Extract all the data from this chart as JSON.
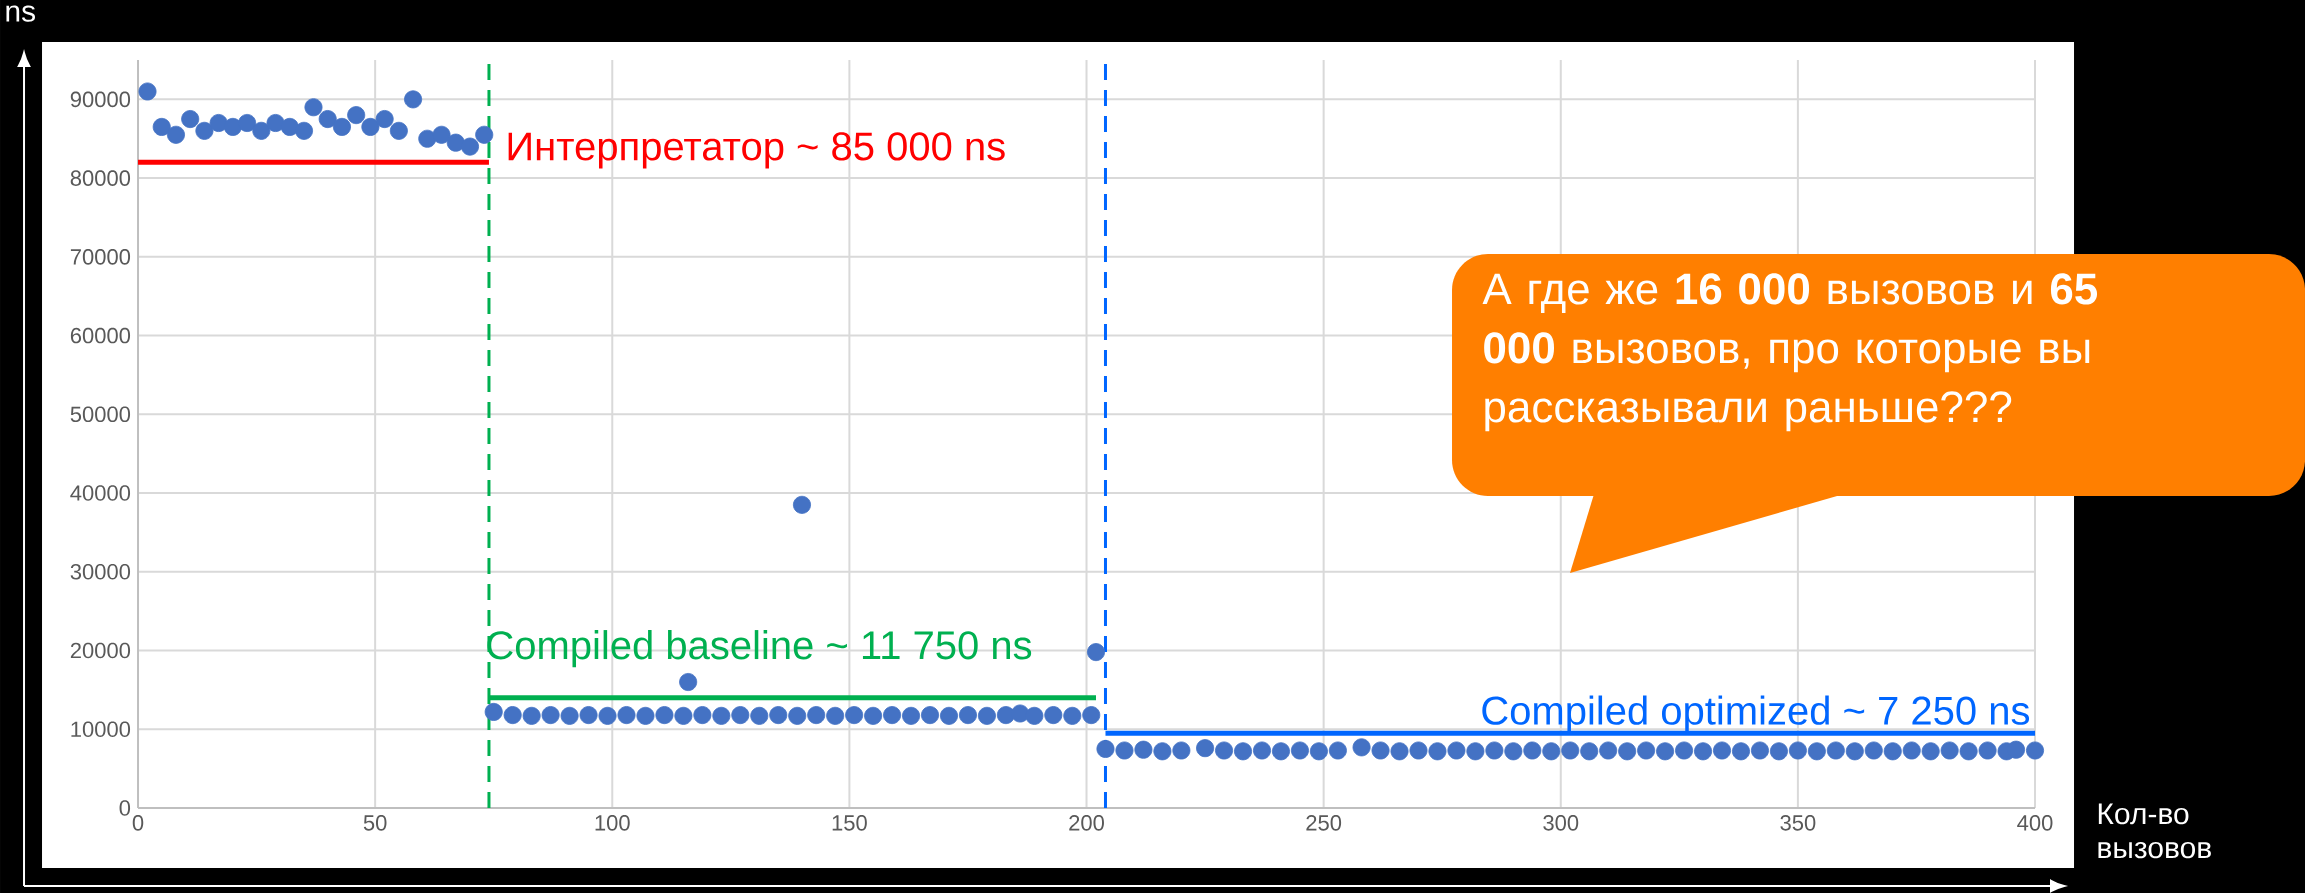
{
  "chart_data": {
    "type": "scatter",
    "xlabel": "Кол-во вызовов",
    "ylabel": "ns",
    "xlim": [
      0,
      400
    ],
    "ylim": [
      0,
      95000
    ],
    "xticks": [
      0,
      50,
      100,
      150,
      200,
      250,
      300,
      350,
      400
    ],
    "yticks": [
      0,
      10000,
      20000,
      30000,
      40000,
      50000,
      60000,
      70000,
      80000,
      90000
    ],
    "grid": true,
    "line_style": "solid",
    "series": [
      {
        "marker": "circle",
        "color": "#4472c4",
        "x": [
          2,
          5,
          8,
          11,
          14,
          17,
          20,
          23,
          26,
          29,
          32,
          35,
          37,
          40,
          43,
          46,
          49,
          52,
          55,
          58,
          61,
          64,
          67,
          70,
          73
        ],
        "values": [
          91000,
          86500,
          85500,
          87500,
          86000,
          87000,
          86500,
          87000,
          86000,
          87000,
          86500,
          86000,
          89000,
          87500,
          86500,
          88000,
          86500,
          87500,
          86000,
          90000,
          85000,
          85500,
          84500,
          84000,
          85500
        ]
      },
      {
        "marker": "circle",
        "color": "#4472c4",
        "x": [
          75,
          79,
          83,
          87,
          91,
          95,
          99,
          103,
          107,
          111,
          115,
          116,
          119,
          123,
          127,
          131,
          135,
          139,
          140,
          143,
          147,
          151,
          155,
          159,
          163,
          167,
          171,
          175,
          179,
          183,
          186,
          189,
          193,
          197,
          201,
          202
        ],
        "values": [
          12200,
          11800,
          11700,
          11800,
          11700,
          11800,
          11700,
          11800,
          11700,
          11800,
          11700,
          16000,
          11800,
          11700,
          11800,
          11700,
          11800,
          11700,
          38500,
          11800,
          11700,
          11800,
          11700,
          11800,
          11700,
          11800,
          11700,
          11800,
          11700,
          11800,
          12000,
          11700,
          11800,
          11700,
          11800,
          19800
        ]
      },
      {
        "marker": "circle",
        "color": "#4472c4",
        "x": [
          204,
          208,
          212,
          216,
          220,
          225,
          229,
          233,
          237,
          241,
          245,
          249,
          253,
          258,
          262,
          266,
          270,
          274,
          278,
          282,
          286,
          290,
          294,
          298,
          302,
          306,
          310,
          314,
          318,
          322,
          326,
          330,
          334,
          338,
          342,
          346,
          350,
          354,
          358,
          362,
          366,
          370,
          374,
          378,
          382,
          386,
          390,
          394,
          396,
          400
        ],
        "values": [
          7500,
          7300,
          7400,
          7200,
          7300,
          7600,
          7300,
          7200,
          7300,
          7200,
          7300,
          7200,
          7300,
          7700,
          7300,
          7200,
          7300,
          7200,
          7300,
          7200,
          7300,
          7200,
          7300,
          7200,
          7300,
          7200,
          7300,
          7200,
          7300,
          7200,
          7300,
          7200,
          7300,
          7200,
          7300,
          7200,
          7300,
          7200,
          7300,
          7200,
          7300,
          7200,
          7300,
          7200,
          7300,
          7200,
          7300,
          7200,
          7400,
          7300
        ]
      },
      {
        "type": "line",
        "marker": "none",
        "name": "Интерпретатор ~ 85 000 ns",
        "color": "#ff0000",
        "x": [
          0,
          74
        ],
        "values": [
          82000,
          82000
        ]
      },
      {
        "type": "line",
        "marker": "none",
        "name": "Compiled baseline ~ 11 750 ns",
        "color": "#00b050",
        "x": [
          74,
          202
        ],
        "values": [
          14000,
          14000
        ]
      },
      {
        "type": "line",
        "marker": "none",
        "name": "Compiled optimized ~ 7 250 ns",
        "color": "#0066ff",
        "x": [
          204,
          400
        ],
        "values": [
          9500,
          9500
        ]
      }
    ],
    "ref_lines": [
      {
        "axis": "x",
        "value": 74,
        "color": "#00b050",
        "line_style": "dashed"
      },
      {
        "axis": "x",
        "value": 204,
        "color": "#0066ff",
        "line_style": "dashed"
      }
    ],
    "annotations": [
      "А где же **16 000** вызовов и **65 000** вызовов, про которые вы рассказывали раньше???"
    ]
  }
}
